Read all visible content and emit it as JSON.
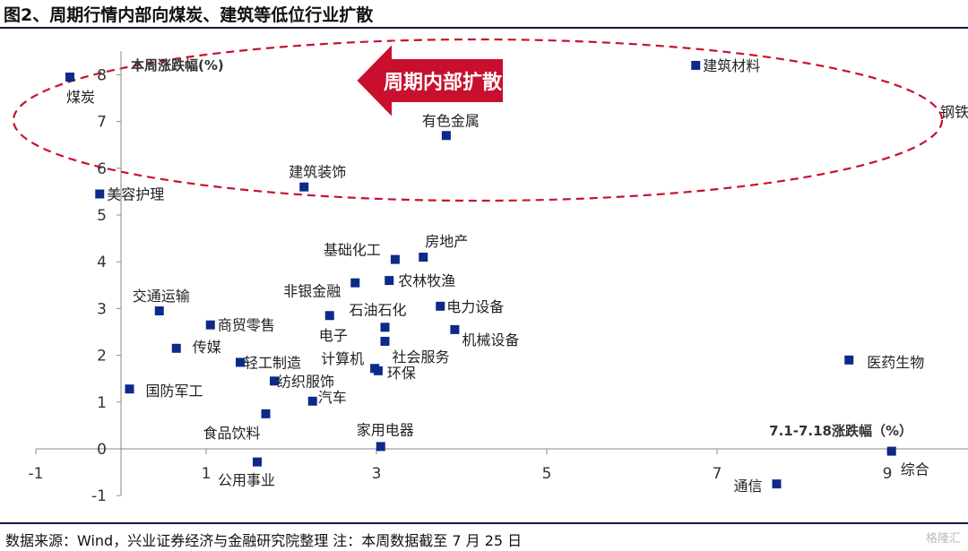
{
  "title": "图2、周期行情内部向煤炭、建筑等低位行业扩散",
  "footer": "数据来源：Wind，兴业证券经济与金融研究院整理    注：本周数据截至 7 月 25 日",
  "watermark": "格隆汇",
  "colors": {
    "marker": "#0d2a8a",
    "ellipse": "#c8102e",
    "arrow": "#c8102e",
    "axis": "#888888"
  },
  "chart_data": {
    "type": "scatter",
    "xlabel": "7.1-7.18涨跌幅（%）",
    "ylabel": "本周涨跌幅(%)",
    "xlim": [
      -1,
      10
    ],
    "ylim": [
      -1,
      8.5
    ],
    "x_ticks": [
      -1,
      1,
      3,
      5,
      7,
      9
    ],
    "y_ticks": [
      -1,
      0,
      1,
      2,
      3,
      4,
      5,
      6,
      7,
      8
    ],
    "annotation": "周期内部扩散",
    "points": [
      {
        "label": "煤炭",
        "x": -0.6,
        "y": 7.95
      },
      {
        "label": "建筑材料",
        "x": 6.75,
        "y": 8.2
      },
      {
        "label": "钢铁",
        "x": 10.0,
        "y": 7.65
      },
      {
        "label": "有色金属",
        "x": 3.82,
        "y": 6.7
      },
      {
        "label": "建筑装饰",
        "x": 2.15,
        "y": 5.6
      },
      {
        "label": "美容护理",
        "x": -0.25,
        "y": 5.45
      },
      {
        "label": "房地产",
        "x": 3.55,
        "y": 4.1
      },
      {
        "label": "基础化工",
        "x": 3.22,
        "y": 4.05
      },
      {
        "label": "农林牧渔",
        "x": 3.15,
        "y": 3.6
      },
      {
        "label": "非银金融",
        "x": 2.75,
        "y": 3.55
      },
      {
        "label": "交通运输",
        "x": 0.45,
        "y": 2.95
      },
      {
        "label": "电力设备",
        "x": 3.75,
        "y": 3.05
      },
      {
        "label": "石油石化",
        "x": 3.1,
        "y": 2.6
      },
      {
        "label": "电子",
        "x": 2.45,
        "y": 2.85
      },
      {
        "label": "商贸零售",
        "x": 1.05,
        "y": 2.65
      },
      {
        "label": "机械设备",
        "x": 3.92,
        "y": 2.55
      },
      {
        "label": "社会服务",
        "x": 3.1,
        "y": 2.3
      },
      {
        "label": "传媒",
        "x": 0.65,
        "y": 2.15
      },
      {
        "label": "轻工制造",
        "x": 1.4,
        "y": 1.85
      },
      {
        "label": "计算机",
        "x": 2.98,
        "y": 1.72
      },
      {
        "label": "环保",
        "x": 3.02,
        "y": 1.67
      },
      {
        "label": "医药生物",
        "x": 8.55,
        "y": 1.9
      },
      {
        "label": "国防军工",
        "x": 0.1,
        "y": 1.28
      },
      {
        "label": "纺织服饰",
        "x": 1.8,
        "y": 1.45
      },
      {
        "label": "汽车",
        "x": 2.25,
        "y": 1.02
      },
      {
        "label": "食品饮料",
        "x": 1.7,
        "y": 0.75
      },
      {
        "label": "家用电器",
        "x": 3.05,
        "y": 0.05
      },
      {
        "label": "综合",
        "x": 9.05,
        "y": -0.05
      },
      {
        "label": "公用事业",
        "x": 1.6,
        "y": -0.28
      },
      {
        "label": "通信",
        "x": 7.7,
        "y": -0.75
      }
    ]
  }
}
